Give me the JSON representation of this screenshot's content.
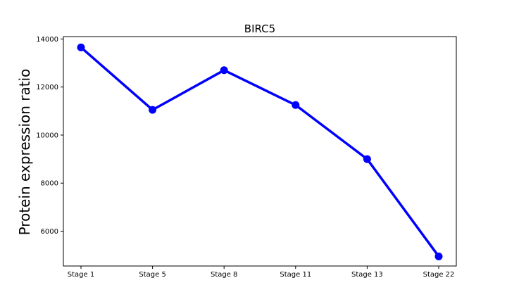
{
  "chart_data": {
    "type": "line",
    "title": "BIRC5",
    "xlabel": "",
    "ylabel": "Protein expression ratio",
    "categories": [
      "Stage 1",
      "Stage 5",
      "Stage 8",
      "Stage 11",
      "Stage 13",
      "Stage 22"
    ],
    "series": [
      {
        "values": [
          13650,
          11050,
          12700,
          11250,
          9000,
          4950
        ],
        "color": "#0000ff",
        "marker": "circle"
      }
    ],
    "ylim": [
      4550,
      14100
    ],
    "yticks": [
      6000,
      8000,
      10000,
      12000,
      14000
    ],
    "grid": false,
    "legend": "none"
  }
}
